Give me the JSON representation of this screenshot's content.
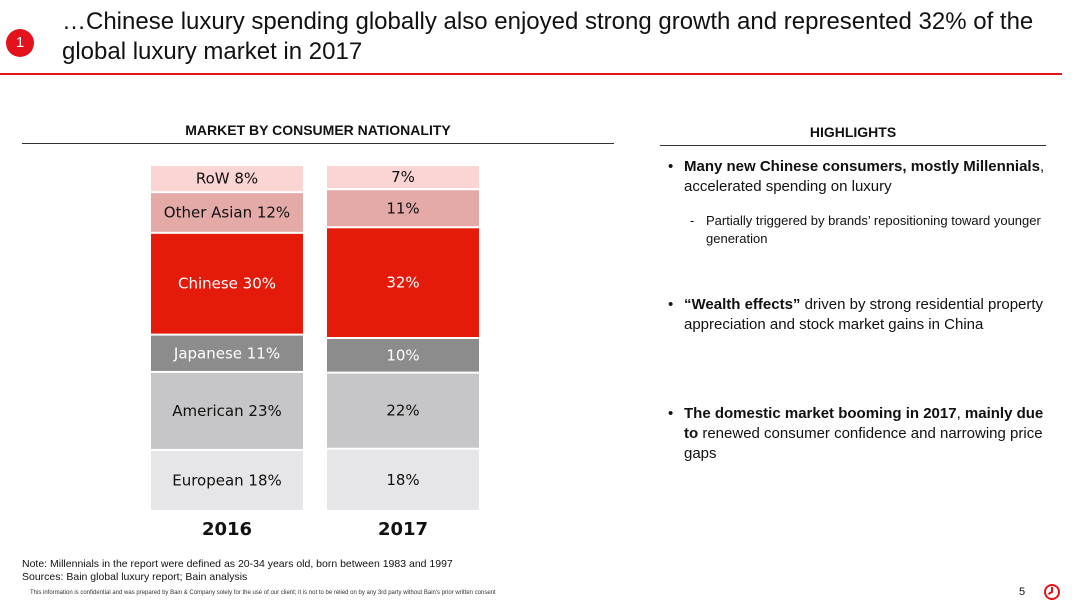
{
  "slide": {
    "badge": "1",
    "title": "…Chinese luxury spending globally also enjoyed strong growth and represented 32% of the global luxury market in 2017"
  },
  "chart_title": "MARKET BY CONSUMER NATIONALITY",
  "chart_data": {
    "type": "bar",
    "stacked": true,
    "percent_stacked": true,
    "title": "MARKET BY CONSUMER NATIONALITY",
    "categories": [
      "2016",
      "2017"
    ],
    "series": [
      {
        "name": "European",
        "values": [
          18,
          18
        ],
        "color": "#e6e6e8",
        "text_color": "#111111",
        "labels": [
          "European 18%",
          "18%"
        ]
      },
      {
        "name": "American",
        "values": [
          23,
          22
        ],
        "color": "#c6c6c8",
        "text_color": "#111111",
        "labels": [
          "American 23%",
          "22%"
        ]
      },
      {
        "name": "Japanese",
        "values": [
          11,
          10
        ],
        "color": "#8c8c8c",
        "text_color": "#ffffff",
        "labels": [
          "Japanese 11%",
          "10%"
        ]
      },
      {
        "name": "Chinese",
        "values": [
          30,
          32
        ],
        "color": "#e41a0a",
        "text_color": "#ffffff",
        "labels": [
          "Chinese 30%",
          "32%"
        ]
      },
      {
        "name": "Other Asian",
        "values": [
          12,
          11
        ],
        "color": "#e4aaa8",
        "text_color": "#111111",
        "labels": [
          "Other Asian 12%",
          "11%"
        ]
      },
      {
        "name": "RoW",
        "values": [
          8,
          7
        ],
        "color": "#fbd4d4",
        "text_color": "#111111",
        "labels": [
          "RoW 8%",
          "7%"
        ]
      }
    ],
    "ylim": [
      0,
      100
    ],
    "xlabel": "",
    "ylabel": ""
  },
  "highlights": {
    "title": "HIGHLIGHTS",
    "b1_bold": "Many new Chinese consumers, mostly Millennials",
    "b1_rest": ", accelerated spending on luxury",
    "b1_sub": "Partially triggered by brands’ repositioning toward younger generation",
    "b2_bold": "“Wealth effects”",
    "b2_rest": " driven by strong residential property appreciation and stock market gains in China",
    "b3_bold1": "The domestic market booming in 2017",
    "b3_mid": ", ",
    "b3_bold2": "mainly due to",
    "b3_rest": " renewed consumer confidence and narrowing price gaps"
  },
  "footer": {
    "note": "Note: Millennials in the report were defined as 20-34 years old, born between 1983 and 1997",
    "sources": "Sources: Bain global luxury report; Bain analysis",
    "confidential": "This information is confidential and was prepared by Bain & Company solely for the use of our client; it is not to be relied on by any 3rd party without Bain's prior written consent",
    "page": "5"
  },
  "colors": {
    "accent": "#e4121a"
  }
}
